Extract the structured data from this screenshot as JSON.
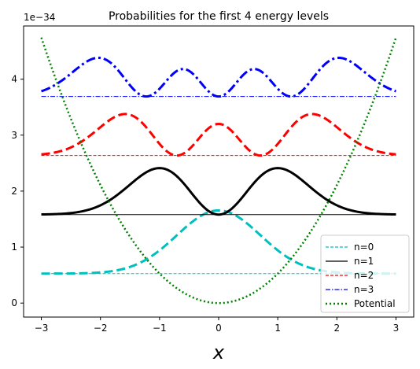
{
  "chart_data": {
    "type": "line",
    "title": "Probabilities for the first 4 energy levels",
    "xlabel": "x",
    "ylabel": "",
    "y_offset_text": "1e−34",
    "xlim": [
      -3.3,
      3.3
    ],
    "ylim": [
      -0.25,
      4.95
    ],
    "xticks": [
      -3,
      -2,
      -1,
      0,
      1,
      2,
      3
    ],
    "xtick_labels": [
      "−3",
      "−2",
      "−1",
      "0",
      "1",
      "2",
      "3"
    ],
    "yticks": [
      0,
      1,
      2,
      3,
      4
    ],
    "ytick_labels": [
      "0",
      "1",
      "2",
      "3",
      "4"
    ],
    "grid": false,
    "legend_position": "lower-right",
    "energy_levels": [
      0.527,
      1.581,
      2.636,
      3.69
    ],
    "probability_scale": 1.0,
    "potential_coefficient": 0.527,
    "series": [
      {
        "name": "n=0",
        "level_index": 0,
        "color": "#00bfbf",
        "style": "dashed"
      },
      {
        "name": "n=1",
        "level_index": 1,
        "color": "#000000",
        "style": "solid"
      },
      {
        "name": "n=2",
        "level_index": 2,
        "color": "#ff0000",
        "style": "dashed"
      },
      {
        "name": "n=3",
        "level_index": 3,
        "color": "#0000ff",
        "style": "dashdot"
      },
      {
        "name": "Potential",
        "color": "#008000",
        "style": "dotted"
      }
    ],
    "x_range": [
      -3,
      3
    ]
  }
}
